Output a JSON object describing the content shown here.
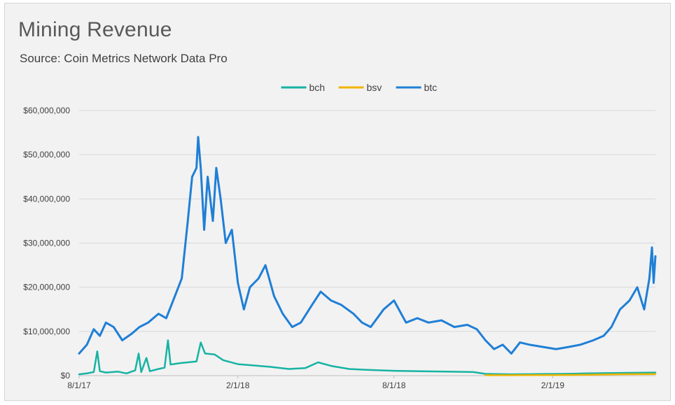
{
  "chart_data": {
    "type": "line",
    "title": "Mining Revenue",
    "subtitle": "Source: Coin Metrics Network Data Pro",
    "xlabel": "",
    "ylabel": "",
    "x_start": "2017-08-01",
    "x_end": "2019-05-31",
    "x_ticks": [
      {
        "date": "2017-08-01",
        "label": "8/1/17"
      },
      {
        "date": "2018-02-01",
        "label": "2/1/18"
      },
      {
        "date": "2018-08-01",
        "label": "8/1/18"
      },
      {
        "date": "2019-02-01",
        "label": "2/1/19"
      }
    ],
    "y_ticks": [
      {
        "value": 0,
        "label": "$0"
      },
      {
        "value": 10000000,
        "label": "$10,000,000"
      },
      {
        "value": 20000000,
        "label": "$20,000,000"
      },
      {
        "value": 30000000,
        "label": "$30,000,000"
      },
      {
        "value": 40000000,
        "label": "$40,000,000"
      },
      {
        "value": 50000000,
        "label": "$50,000,000"
      },
      {
        "value": 60000000,
        "label": "$60,000,000"
      }
    ],
    "ylim": [
      0,
      60000000
    ],
    "grid": true,
    "legend_position": "top-center",
    "series": [
      {
        "name": "bch",
        "color": "#17b3a3",
        "points": [
          [
            "2017-08-01",
            300000
          ],
          [
            "2017-08-10",
            500000
          ],
          [
            "2017-08-18",
            800000
          ],
          [
            "2017-08-22",
            5500000
          ],
          [
            "2017-08-25",
            1000000
          ],
          [
            "2017-09-01",
            700000
          ],
          [
            "2017-09-15",
            900000
          ],
          [
            "2017-09-25",
            500000
          ],
          [
            "2017-10-05",
            1200000
          ],
          [
            "2017-10-09",
            5000000
          ],
          [
            "2017-10-12",
            800000
          ],
          [
            "2017-10-18",
            4000000
          ],
          [
            "2017-10-22",
            1000000
          ],
          [
            "2017-11-01",
            1500000
          ],
          [
            "2017-11-08",
            1800000
          ],
          [
            "2017-11-12",
            8000000
          ],
          [
            "2017-11-15",
            2500000
          ],
          [
            "2017-11-25",
            2800000
          ],
          [
            "2017-12-05",
            3000000
          ],
          [
            "2017-12-15",
            3200000
          ],
          [
            "2017-12-20",
            7500000
          ],
          [
            "2017-12-25",
            5000000
          ],
          [
            "2018-01-05",
            4800000
          ],
          [
            "2018-01-15",
            3500000
          ],
          [
            "2018-02-01",
            2600000
          ],
          [
            "2018-02-20",
            2300000
          ],
          [
            "2018-03-10",
            2000000
          ],
          [
            "2018-04-01",
            1500000
          ],
          [
            "2018-04-20",
            1700000
          ],
          [
            "2018-05-05",
            3000000
          ],
          [
            "2018-05-20",
            2200000
          ],
          [
            "2018-06-10",
            1500000
          ],
          [
            "2018-07-01",
            1300000
          ],
          [
            "2018-08-01",
            1100000
          ],
          [
            "2018-09-01",
            1000000
          ],
          [
            "2018-10-01",
            900000
          ],
          [
            "2018-11-01",
            800000
          ],
          [
            "2018-11-15",
            400000
          ],
          [
            "2018-12-15",
            300000
          ],
          [
            "2019-01-15",
            350000
          ],
          [
            "2019-02-15",
            400000
          ],
          [
            "2019-03-15",
            500000
          ],
          [
            "2019-04-15",
            600000
          ],
          [
            "2019-05-31",
            700000
          ]
        ]
      },
      {
        "name": "bsv",
        "color": "#f0b400",
        "points": [
          [
            "2018-11-15",
            100000
          ],
          [
            "2018-12-15",
            100000
          ],
          [
            "2019-01-15",
            120000
          ],
          [
            "2019-02-15",
            150000
          ],
          [
            "2019-03-15",
            200000
          ],
          [
            "2019-04-15",
            300000
          ],
          [
            "2019-05-31",
            350000
          ]
        ]
      },
      {
        "name": "btc",
        "color": "#1f7fd6",
        "points": [
          [
            "2017-08-01",
            5000000
          ],
          [
            "2017-08-10",
            7000000
          ],
          [
            "2017-08-18",
            10500000
          ],
          [
            "2017-08-25",
            9000000
          ],
          [
            "2017-09-01",
            12000000
          ],
          [
            "2017-09-10",
            11000000
          ],
          [
            "2017-09-20",
            8000000
          ],
          [
            "2017-10-01",
            9500000
          ],
          [
            "2017-10-10",
            11000000
          ],
          [
            "2017-10-20",
            12000000
          ],
          [
            "2017-11-01",
            14000000
          ],
          [
            "2017-11-10",
            13000000
          ],
          [
            "2017-11-20",
            18000000
          ],
          [
            "2017-11-28",
            22000000
          ],
          [
            "2017-12-05",
            35000000
          ],
          [
            "2017-12-10",
            45000000
          ],
          [
            "2017-12-15",
            47000000
          ],
          [
            "2017-12-17",
            54000000
          ],
          [
            "2017-12-20",
            47000000
          ],
          [
            "2017-12-24",
            33000000
          ],
          [
            "2017-12-28",
            45000000
          ],
          [
            "2018-01-03",
            35000000
          ],
          [
            "2018-01-07",
            47000000
          ],
          [
            "2018-01-12",
            40000000
          ],
          [
            "2018-01-18",
            30000000
          ],
          [
            "2018-01-25",
            33000000
          ],
          [
            "2018-02-01",
            21000000
          ],
          [
            "2018-02-08",
            15000000
          ],
          [
            "2018-02-15",
            20000000
          ],
          [
            "2018-02-25",
            22000000
          ],
          [
            "2018-03-05",
            25000000
          ],
          [
            "2018-03-15",
            18000000
          ],
          [
            "2018-03-25",
            14000000
          ],
          [
            "2018-04-05",
            11000000
          ],
          [
            "2018-04-15",
            12000000
          ],
          [
            "2018-04-28",
            16000000
          ],
          [
            "2018-05-08",
            19000000
          ],
          [
            "2018-05-20",
            17000000
          ],
          [
            "2018-06-01",
            16000000
          ],
          [
            "2018-06-15",
            14000000
          ],
          [
            "2018-06-25",
            12000000
          ],
          [
            "2018-07-05",
            11000000
          ],
          [
            "2018-07-20",
            15000000
          ],
          [
            "2018-08-01",
            17000000
          ],
          [
            "2018-08-15",
            12000000
          ],
          [
            "2018-08-28",
            13000000
          ],
          [
            "2018-09-10",
            12000000
          ],
          [
            "2018-09-25",
            12500000
          ],
          [
            "2018-10-10",
            11000000
          ],
          [
            "2018-10-25",
            11500000
          ],
          [
            "2018-11-05",
            10500000
          ],
          [
            "2018-11-15",
            8000000
          ],
          [
            "2018-11-25",
            6000000
          ],
          [
            "2018-12-05",
            7000000
          ],
          [
            "2018-12-15",
            5000000
          ],
          [
            "2018-12-25",
            7500000
          ],
          [
            "2019-01-05",
            7000000
          ],
          [
            "2019-01-20",
            6500000
          ],
          [
            "2019-02-05",
            6000000
          ],
          [
            "2019-02-20",
            6500000
          ],
          [
            "2019-03-05",
            7000000
          ],
          [
            "2019-03-20",
            8000000
          ],
          [
            "2019-04-01",
            9000000
          ],
          [
            "2019-04-10",
            11000000
          ],
          [
            "2019-04-20",
            15000000
          ],
          [
            "2019-05-01",
            17000000
          ],
          [
            "2019-05-10",
            20000000
          ],
          [
            "2019-05-18",
            15000000
          ],
          [
            "2019-05-24",
            22000000
          ],
          [
            "2019-05-27",
            29000000
          ],
          [
            "2019-05-29",
            21000000
          ],
          [
            "2019-05-31",
            27000000
          ]
        ]
      }
    ]
  }
}
